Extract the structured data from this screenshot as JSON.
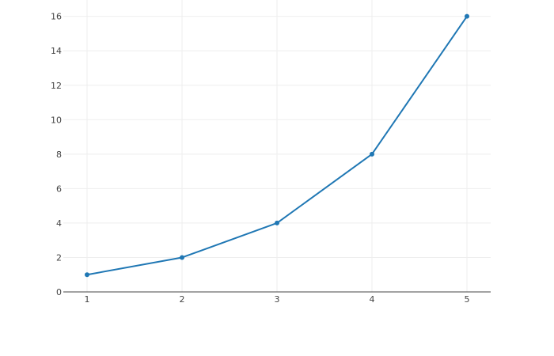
{
  "chart_data": {
    "type": "line",
    "title": "",
    "xlabel": "",
    "ylabel": "",
    "x": [
      1,
      2,
      3,
      4,
      5
    ],
    "series": [
      {
        "values": [
          1,
          2,
          4,
          8,
          16
        ],
        "color": "#1f77b4",
        "mode": "lines+markers"
      }
    ],
    "xlim": [
      0.75,
      5.25
    ],
    "ylim": [
      0,
      16.95
    ],
    "xticks": [
      "1",
      "2",
      "3",
      "4",
      "5"
    ],
    "yticks": [
      "0",
      "2",
      "4",
      "6",
      "8",
      "10",
      "12",
      "14",
      "16"
    ],
    "grid": true,
    "legend": "none"
  }
}
